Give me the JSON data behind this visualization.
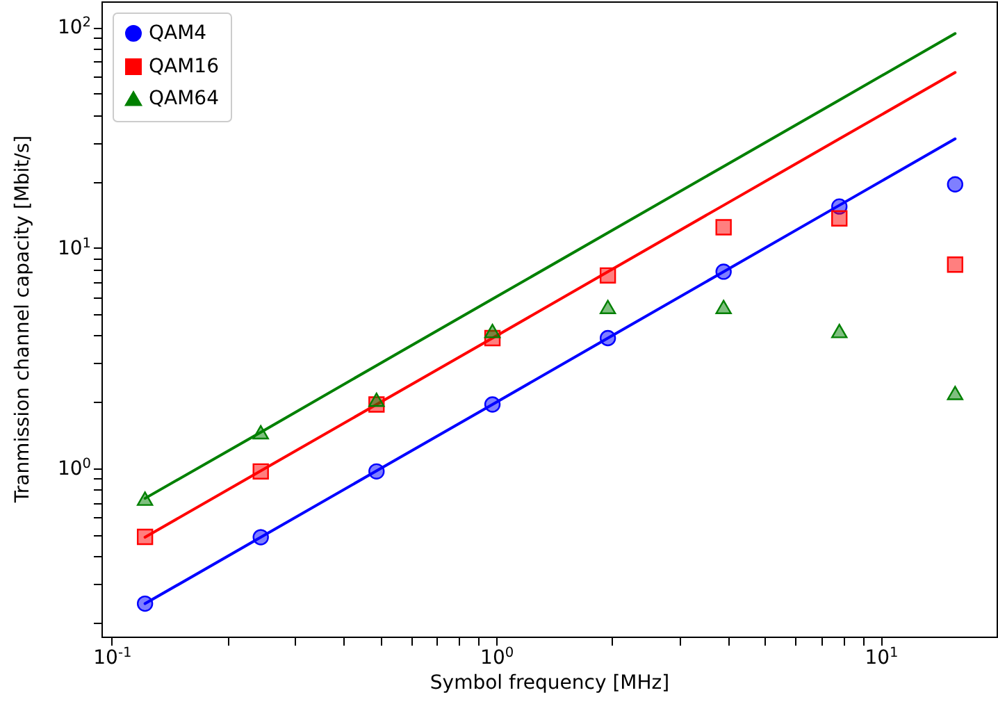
{
  "chart_data": {
    "type": "scatter",
    "xlabel": "Symbol frequency [MHz]",
    "ylabel": "Tranmission channel capacity [Mbit/s]",
    "log": "xy",
    "grid": false,
    "legend": "top left",
    "x": [
      0.122,
      0.244,
      0.488,
      0.977,
      1.95,
      3.9,
      7.8,
      15.6
    ],
    "xlim": [
      0.094,
      20
    ],
    "ylim": [
      0.173,
      131
    ],
    "xticks": [
      {
        "value": 0.1,
        "label": "10$^{-1}$"
      },
      {
        "value": 0.2,
        "label": null
      },
      {
        "value": 0.3,
        "label": null
      },
      {
        "value": 0.4,
        "label": null
      },
      {
        "value": 0.5,
        "label": null
      },
      {
        "value": 0.6,
        "label": null
      },
      {
        "value": 0.7,
        "label": null
      },
      {
        "value": 0.8,
        "label": null
      },
      {
        "value": 0.9,
        "label": null
      },
      {
        "value": 1,
        "label": "10$^{0}$"
      },
      {
        "value": 2,
        "label": null
      },
      {
        "value": 3,
        "label": null
      },
      {
        "value": 4,
        "label": null
      },
      {
        "value": 5,
        "label": null
      },
      {
        "value": 6,
        "label": null
      },
      {
        "value": 7,
        "label": null
      },
      {
        "value": 8,
        "label": null
      },
      {
        "value": 9,
        "label": null
      },
      {
        "value": 10,
        "label": "10$^{1}$"
      }
    ],
    "yticks": [
      {
        "value": 0.2,
        "label": null
      },
      {
        "value": 0.3,
        "label": null
      },
      {
        "value": 0.4,
        "label": null
      },
      {
        "value": 0.5,
        "label": null
      },
      {
        "value": 0.6,
        "label": null
      },
      {
        "value": 0.7,
        "label": null
      },
      {
        "value": 0.8,
        "label": null
      },
      {
        "value": 0.9,
        "label": null
      },
      {
        "value": 1,
        "label": "10$^{0}$"
      },
      {
        "value": 2,
        "label": null
      },
      {
        "value": 3,
        "label": null
      },
      {
        "value": 4,
        "label": null
      },
      {
        "value": 5,
        "label": null
      },
      {
        "value": 6,
        "label": null
      },
      {
        "value": 7,
        "label": null
      },
      {
        "value": 8,
        "label": null
      },
      {
        "value": 9,
        "label": null
      },
      {
        "value": 10,
        "label": "10$^{1}$"
      },
      {
        "value": 20,
        "label": null
      },
      {
        "value": 30,
        "label": null
      },
      {
        "value": 40,
        "label": null
      },
      {
        "value": 50,
        "label": null
      },
      {
        "value": 60,
        "label": null
      },
      {
        "value": 70,
        "label": null
      },
      {
        "value": 80,
        "label": null
      },
      {
        "value": 90,
        "label": null
      },
      {
        "value": 100,
        "label": "10$^{2}$"
      }
    ],
    "series": [
      {
        "type": "line",
        "color": "#0000ff",
        "values": [
          0.244,
          0.488,
          0.976,
          1.95,
          3.9,
          7.8,
          15.6,
          31.2
        ]
      },
      {
        "type": "line",
        "color": "#ff0000",
        "values": [
          0.488,
          0.976,
          1.95,
          3.9,
          7.8,
          15.6,
          31.2,
          62.4
        ]
      },
      {
        "type": "line",
        "color": "#008000",
        "values": [
          0.732,
          1.46,
          2.93,
          5.86,
          11.7,
          23.4,
          46.8,
          93.6
        ]
      },
      {
        "name": "QAM4",
        "marker": "circle",
        "color": "#0000ff",
        "values": [
          0.244,
          0.488,
          0.97,
          1.95,
          3.9,
          7.8,
          15.4,
          19.4
        ]
      },
      {
        "name": "QAM16",
        "marker": "square",
        "color": "#ff0000",
        "values": [
          0.49,
          0.97,
          1.95,
          3.9,
          7.5,
          12.4,
          13.6,
          8.4
        ]
      },
      {
        "name": "QAM64",
        "marker": "triangle",
        "color": "#008000",
        "values": [
          0.73,
          1.46,
          2.05,
          4.2,
          5.4,
          5.4,
          4.2,
          2.2
        ]
      }
    ]
  }
}
